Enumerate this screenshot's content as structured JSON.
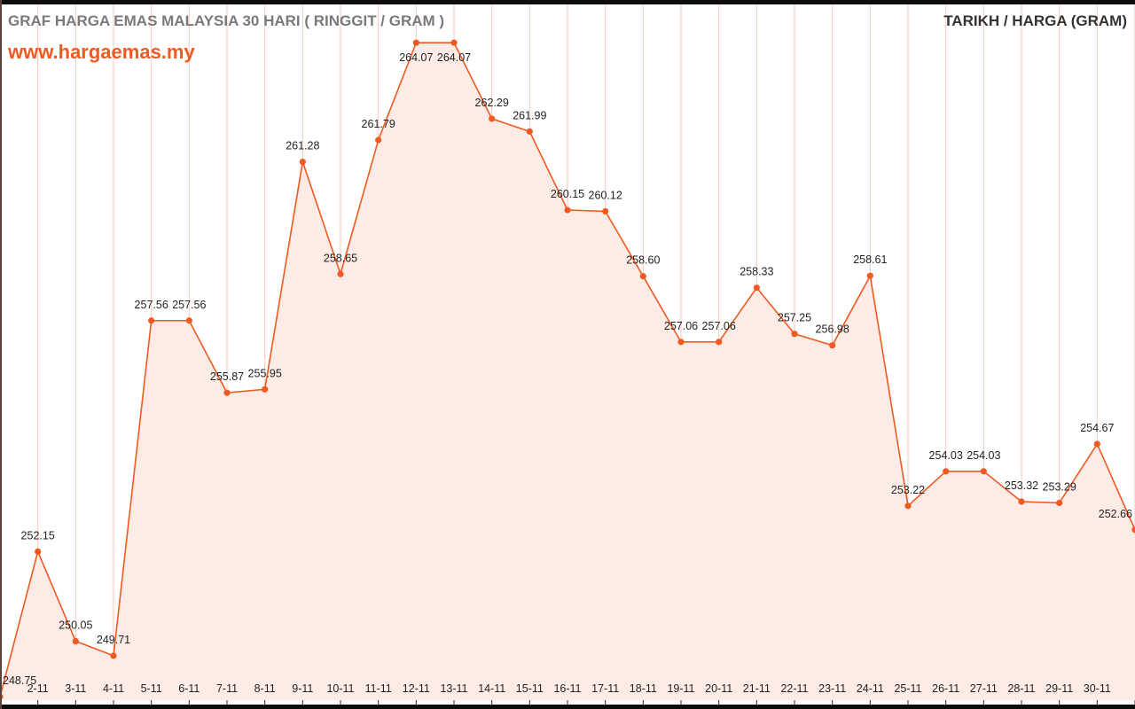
{
  "header": {
    "title": "GRAF HARGA EMAS MALAYSIA 30 HARI ( RINGGIT / GRAM )",
    "site": "www.hargaemas.my",
    "right_title": "TARIKH / HARGA (GRAM)"
  },
  "chart_data": {
    "type": "area",
    "title": "GRAF HARGA EMAS MALAYSIA 30 HARI ( RINGGIT / GRAM )",
    "xlabel": "",
    "ylabel": "",
    "categories": [
      "",
      "2-11",
      "3-11",
      "4-11",
      "5-11",
      "6-11",
      "7-11",
      "8-11",
      "9-11",
      "10-11",
      "11-11",
      "12-11",
      "13-11",
      "14-11",
      "15-11",
      "16-11",
      "17-11",
      "18-11",
      "19-11",
      "20-11",
      "21-11",
      "22-11",
      "23-11",
      "24-11",
      "25-11",
      "26-11",
      "27-11",
      "28-11",
      "29-11",
      "30-11",
      ""
    ],
    "values": [
      248.75,
      252.15,
      250.05,
      249.71,
      257.56,
      257.56,
      255.87,
      255.95,
      261.28,
      258.65,
      261.79,
      264.07,
      264.07,
      262.29,
      261.99,
      260.15,
      260.12,
      258.6,
      257.06,
      257.06,
      258.33,
      257.25,
      256.98,
      258.61,
      253.22,
      254.03,
      254.03,
      253.32,
      253.29,
      254.67,
      252.66
    ],
    "ylim": [
      248.67,
      265.07
    ],
    "grid": "vertical",
    "line_color": "#f05a22",
    "fill_color": "#fdece6",
    "grid_color": "#f9c9b8"
  }
}
